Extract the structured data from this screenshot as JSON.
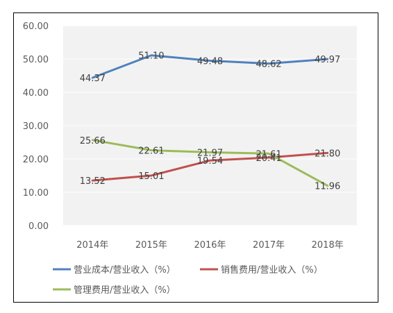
{
  "chart_data": {
    "type": "line",
    "categories": [
      "2014年",
      "2015年",
      "2016年",
      "2017年",
      "2018年"
    ],
    "ylim": [
      0,
      60
    ],
    "yticks": [
      "0.00",
      "10.00",
      "20.00",
      "30.00",
      "40.00",
      "50.00",
      "60.00"
    ],
    "grid": true,
    "legend": "bottom",
    "series": [
      {
        "name": "营业成本/营业收入（%）",
        "color": "#4F81BD",
        "values": [
          44.37,
          51.1,
          49.48,
          48.62,
          49.97
        ],
        "labels": [
          "44.37",
          "51.10",
          "49.48",
          "48.62",
          "49.97"
        ]
      },
      {
        "name": "销售费用/营业收入（%）",
        "color": "#C0504D",
        "values": [
          13.52,
          15.01,
          19.54,
          20.41,
          21.8
        ],
        "labels": [
          "13.52",
          "15.01",
          "19.54",
          "20.41",
          "21.80"
        ]
      },
      {
        "name": "管理费用/营业收入（%）",
        "color": "#9BBB59",
        "values": [
          25.66,
          22.61,
          21.97,
          21.61,
          11.96
        ],
        "labels": [
          "25.66",
          "22.61",
          "21.97",
          "21.61",
          "11.96"
        ]
      }
    ]
  }
}
